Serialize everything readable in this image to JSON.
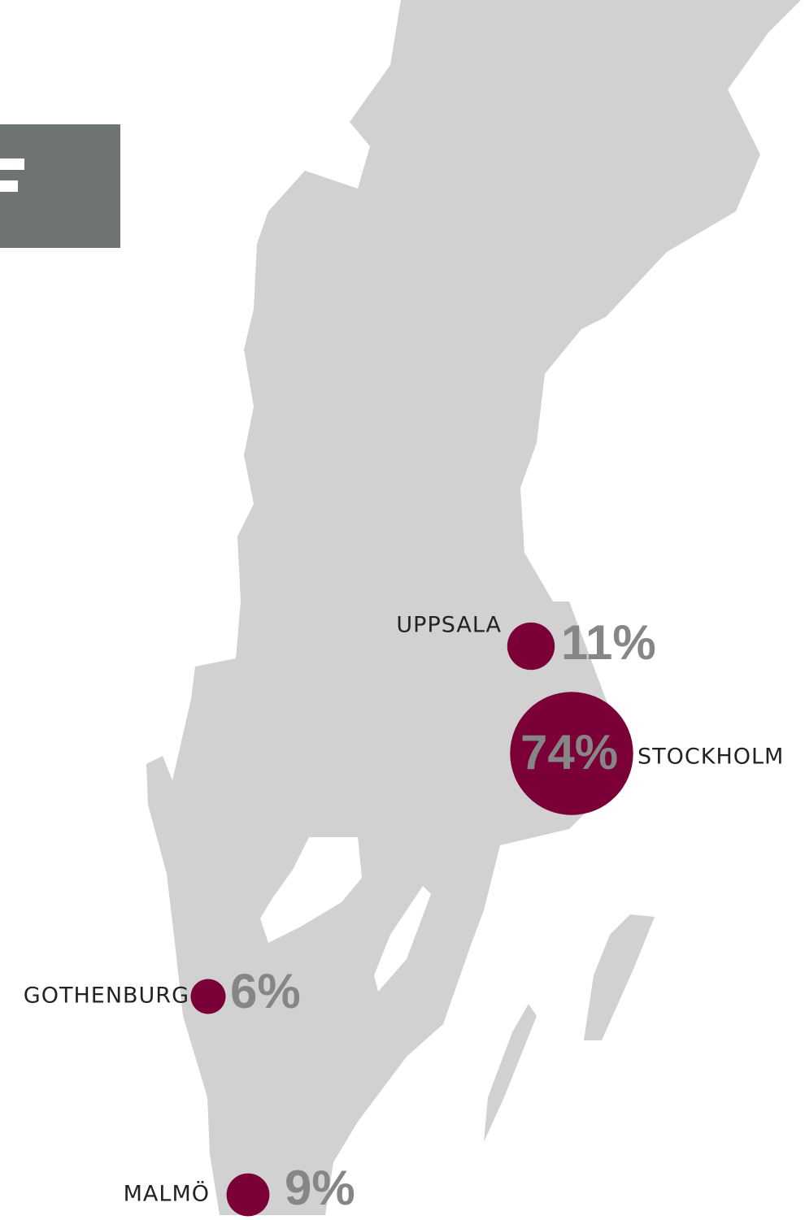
{
  "cities": [
    {
      "name": "UPPSALA",
      "value": 11,
      "value_label": "11%"
    },
    {
      "name": "STOCKHOLM",
      "value": 74,
      "value_label": "74%"
    },
    {
      "name": "GOTHENBURG",
      "value": 6,
      "value_label": "6%"
    },
    {
      "name": "MALMÖ",
      "value": 9,
      "value_label": "9%"
    }
  ],
  "color": "#7a0037"
}
